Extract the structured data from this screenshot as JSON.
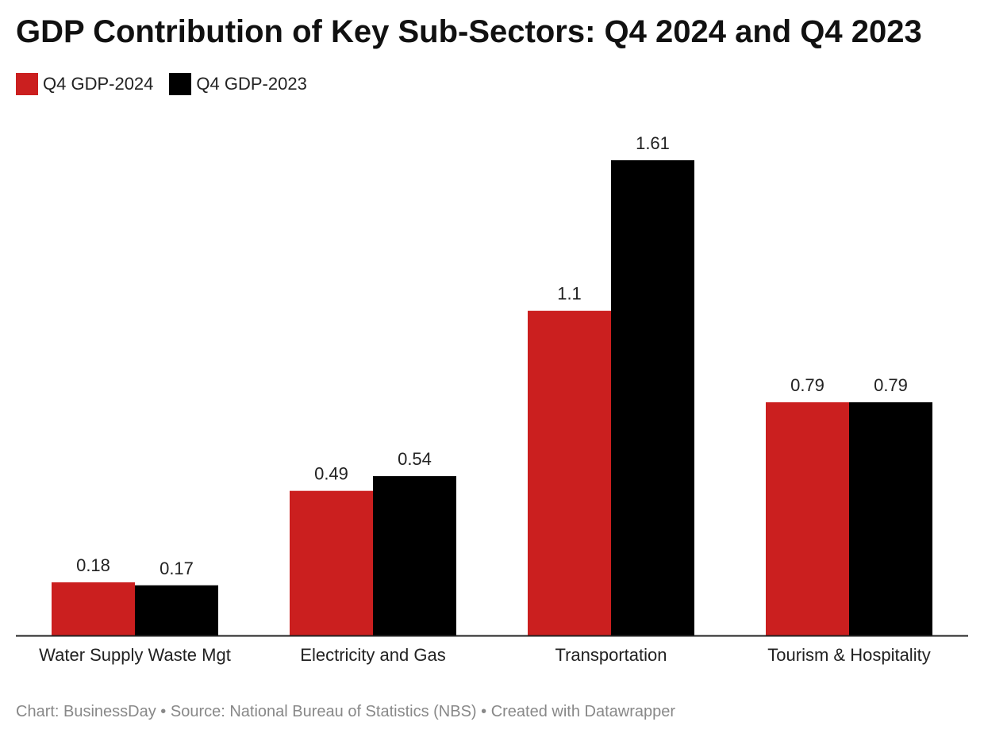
{
  "chart_data": {
    "type": "bar",
    "title": "GDP Contribution of Key Sub-Sectors: Q4 2024 and Q4 2023",
    "categories": [
      "Water Supply Waste Mgt",
      "Electricity and Gas",
      "Transportation",
      "Tourism & Hospitality"
    ],
    "series": [
      {
        "name": "Q4 GDP-2024",
        "color": "#cb1f1f",
        "values": [
          0.18,
          0.49,
          1.1,
          0.79
        ]
      },
      {
        "name": "Q4 GDP-2023",
        "color": "#000000",
        "values": [
          0.17,
          0.54,
          1.61,
          0.79
        ]
      }
    ],
    "ylim": [
      0,
      1.61
    ],
    "grid": false,
    "legend_position": "top-left",
    "data_labels": true
  },
  "footer": {
    "text": "Chart: BusinessDay • Source: National Bureau of Statistics (NBS) • Created with Datawrapper"
  }
}
